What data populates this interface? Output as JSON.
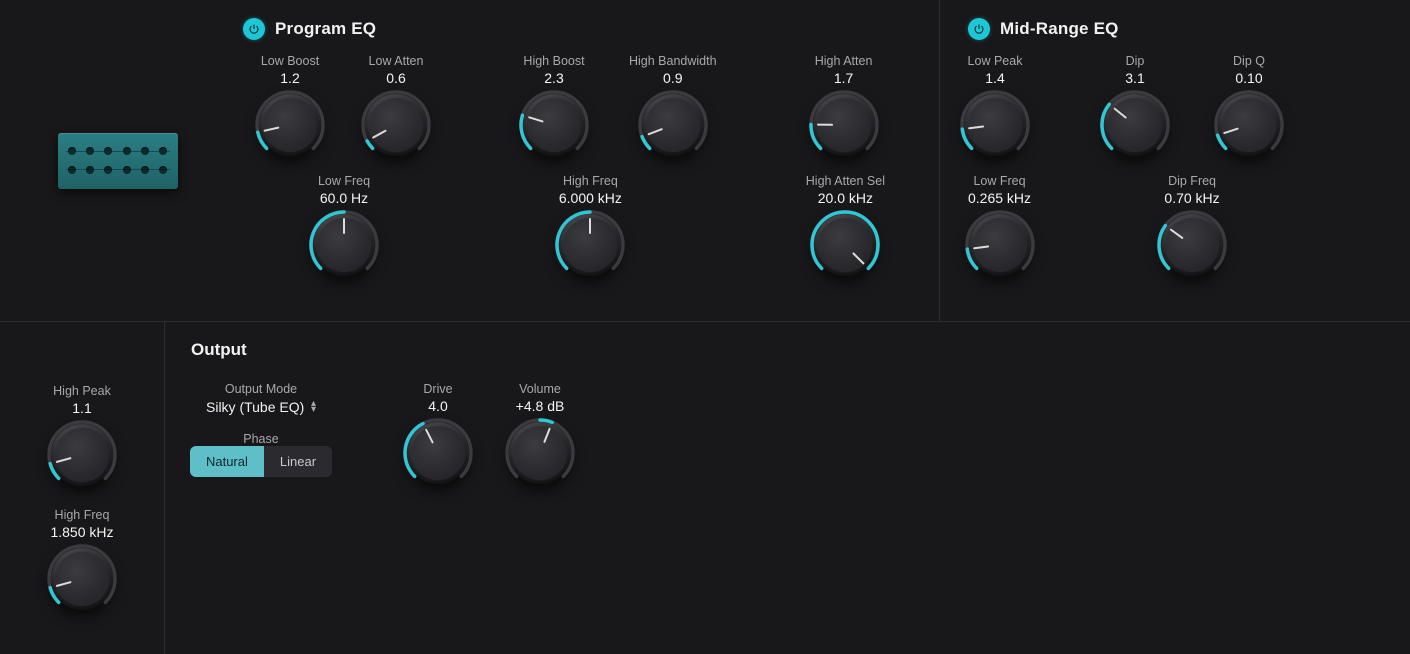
{
  "colors": {
    "accent": "#30c6d4",
    "arc_bg": "#3a3a3f",
    "panel_bg": "#18181a"
  },
  "sections": {
    "program_eq": {
      "title": "Program EQ",
      "power_on": true
    },
    "midrange_eq": {
      "title": "Mid-Range EQ",
      "power_on": true
    },
    "output": {
      "title": "Output"
    }
  },
  "knobs": {
    "low_boost": {
      "label": "Low Boost",
      "value": "1.2",
      "fill": 0.12,
      "sweep": 270,
      "start": 225
    },
    "low_atten": {
      "label": "Low Atten",
      "value": "0.6",
      "fill": 0.06,
      "sweep": 270,
      "start": 225
    },
    "high_boost": {
      "label": "High Boost",
      "value": "2.3",
      "fill": 0.23,
      "sweep": 270,
      "start": 225
    },
    "high_bandwidth": {
      "label": "High Bandwidth",
      "value": "0.9",
      "fill": 0.09,
      "sweep": 270,
      "start": 225
    },
    "high_atten": {
      "label": "High Atten",
      "value": "1.7",
      "fill": 0.17,
      "sweep": 270,
      "start": 225
    },
    "low_freq": {
      "label": "Low Freq",
      "value": "60.0 Hz",
      "fill": 0.5,
      "sweep": 270,
      "start": 225
    },
    "high_freq": {
      "label": "High Freq",
      "value": "6.000 kHz",
      "fill": 0.5,
      "sweep": 270,
      "start": 225
    },
    "high_atten_sel": {
      "label": "High Atten Sel",
      "value": "20.0 kHz",
      "fill": 1.0,
      "sweep": 270,
      "start": 225
    },
    "low_peak": {
      "label": "Low Peak",
      "value": "1.4",
      "fill": 0.14,
      "sweep": 270,
      "start": 225
    },
    "dip": {
      "label": "Dip",
      "value": "3.1",
      "fill": 0.31,
      "sweep": 270,
      "start": 225
    },
    "dip_q": {
      "label": "Dip Q",
      "value": "0.10",
      "fill": 0.1,
      "sweep": 270,
      "start": 225
    },
    "mid_low_freq": {
      "label": "Low Freq",
      "value": "0.265 kHz",
      "fill": 0.14,
      "sweep": 270,
      "start": 225
    },
    "dip_freq": {
      "label": "Dip Freq",
      "value": "0.70 kHz",
      "fill": 0.3,
      "sweep": 270,
      "start": 225
    },
    "high_peak": {
      "label": "High Peak",
      "value": "1.1",
      "fill": 0.11,
      "sweep": 270,
      "start": 225
    },
    "bl_high_freq": {
      "label": "High Freq",
      "value": "1.850 kHz",
      "fill": 0.11,
      "sweep": 270,
      "start": 225
    },
    "drive": {
      "label": "Drive",
      "value": "4.0",
      "fill": 0.4,
      "sweep": 270,
      "start": 225
    },
    "volume": {
      "label": "Volume",
      "value": "+4.8 dB",
      "fill": 0.58,
      "sweep": 270,
      "start": 225,
      "bipolar": true
    }
  },
  "output": {
    "mode_label": "Output Mode",
    "mode_value": "Silky (Tube EQ)",
    "phase_label": "Phase",
    "phase_options": [
      "Natural",
      "Linear"
    ],
    "phase_selected": 0
  }
}
